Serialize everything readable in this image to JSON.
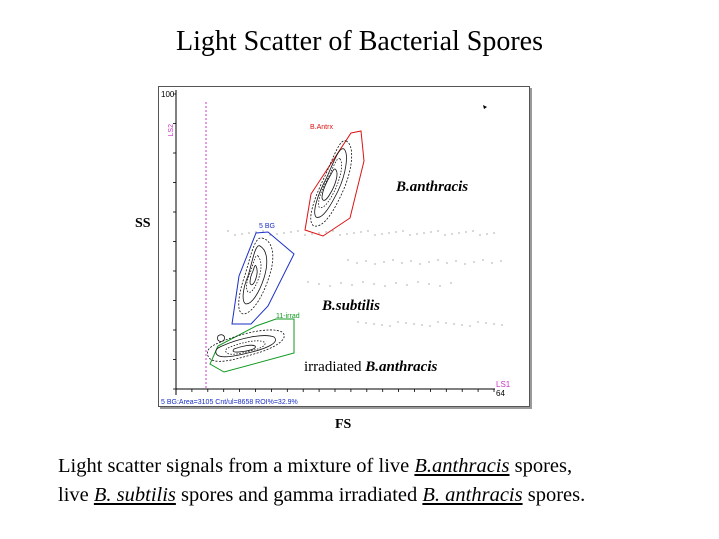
{
  "title": "Light Scatter of Bacterial Spores",
  "chart_data": {
    "type": "scatter",
    "xlabel": "FS",
    "ylabel": "SS",
    "y_axis_max_label": "100",
    "y_axis_param_label": "LS2",
    "x_axis_end_label": "64",
    "x_axis_param_label": "LS1",
    "status_bar": "5 BG:Area=3105 Cnt/ul=8658 ROI%=32.9%",
    "gates": [
      {
        "name": "B.Antrx",
        "color": "#dd1111"
      },
      {
        "name": "5 BG",
        "color": "#1a2fc8"
      },
      {
        "name": "11-irrad",
        "color": "#119922"
      }
    ],
    "populations": [
      {
        "label": "B.anthracis",
        "style": "bold-italic"
      },
      {
        "label": "B.subtilis",
        "style": "bold-italic"
      },
      {
        "label_prefix": "irradiated ",
        "label": "B.anthracis",
        "style": "bold-italic"
      }
    ]
  },
  "caption": {
    "line1": {
      "a": "Light scatter signals from a mixture of  live  ",
      "b": "B.anthracis",
      "c": " spores,"
    },
    "line2": {
      "a": "live ",
      "b": "B. subtilis",
      "c": " spores and gamma irradiated ",
      "d": "B. anthracis",
      "e": " spores."
    }
  }
}
